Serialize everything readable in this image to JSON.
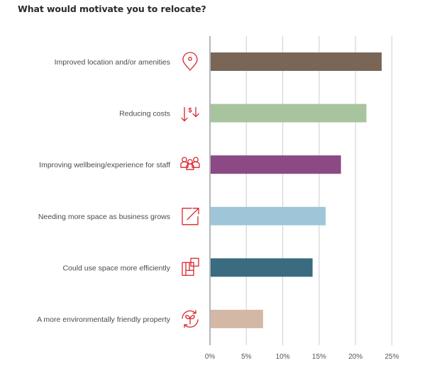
{
  "chart_data": {
    "type": "bar",
    "orientation": "horizontal",
    "title": "What would motivate you to relocate?",
    "xlabel": "",
    "ylabel": "",
    "xlim": [
      0,
      25
    ],
    "x_ticks": [
      0,
      5,
      10,
      15,
      20,
      25
    ],
    "x_tick_labels": [
      "0%",
      "5%",
      "10%",
      "15%",
      "20%",
      "25%"
    ],
    "grid": "vertical",
    "categories": [
      "Improved location and/or amenities",
      "Reducing costs",
      "Improving wellbeing/experience for staff",
      "Needing more space as business grows",
      "Could use space more efficiently",
      "A more environmentally friendly property"
    ],
    "values": [
      23.6,
      21.5,
      18.0,
      15.9,
      14.1,
      7.3
    ],
    "unit": "%",
    "bar_colors": [
      "#7a6656",
      "#a8c49e",
      "#8b4a83",
      "#9fc6d8",
      "#3a6b80",
      "#d4b8a6"
    ],
    "icons": [
      "location-pin-icon",
      "cost-reduction-icon",
      "people-group-icon",
      "expand-arrow-icon",
      "floorplan-icon",
      "sustainability-plant-icon"
    ],
    "icon_color": "#d8262d"
  }
}
